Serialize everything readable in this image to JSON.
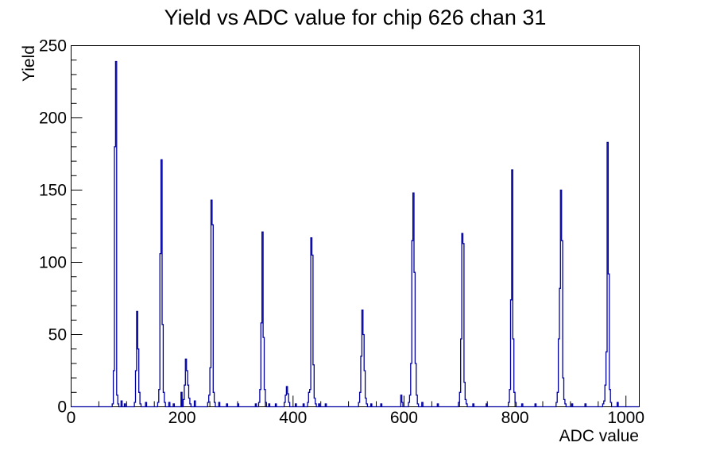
{
  "chart_data": {
    "type": "bar",
    "subtype": "histogram-step-line",
    "title": "Yield vs ADC value for chip 626 chan 31",
    "xlabel": "ADC value",
    "ylabel": "Yield",
    "xlim": [
      0,
      1024
    ],
    "ylim": [
      0,
      250
    ],
    "grid": false,
    "legend": null,
    "line_color": "#0000a0",
    "axis_color": "#000000",
    "x_ticks": {
      "major": [
        0,
        200,
        400,
        600,
        800,
        1000
      ],
      "labels": [
        "0",
        "200",
        "400",
        "600",
        "800",
        "1000"
      ],
      "minor_step": 50
    },
    "y_ticks": {
      "major": [
        0,
        50,
        100,
        150,
        200,
        250
      ],
      "labels": [
        "0",
        "50",
        "100",
        "150",
        "200",
        "250"
      ],
      "minor_step": 10
    },
    "bin_width": 2,
    "bins": [
      [
        74,
        2
      ],
      [
        76,
        25
      ],
      [
        78,
        180
      ],
      [
        80,
        239
      ],
      [
        82,
        8
      ],
      [
        84,
        2
      ],
      [
        90,
        4
      ],
      [
        96,
        2
      ],
      [
        114,
        3
      ],
      [
        116,
        25
      ],
      [
        118,
        66
      ],
      [
        120,
        40
      ],
      [
        122,
        10
      ],
      [
        124,
        2
      ],
      [
        134,
        3
      ],
      [
        156,
        3
      ],
      [
        158,
        12
      ],
      [
        160,
        106
      ],
      [
        162,
        171
      ],
      [
        164,
        57
      ],
      [
        166,
        10
      ],
      [
        168,
        3
      ],
      [
        176,
        3
      ],
      [
        184,
        2
      ],
      [
        198,
        10
      ],
      [
        202,
        5
      ],
      [
        204,
        15
      ],
      [
        206,
        33
      ],
      [
        208,
        25
      ],
      [
        210,
        15
      ],
      [
        212,
        6
      ],
      [
        214,
        2
      ],
      [
        222,
        4
      ],
      [
        246,
        3
      ],
      [
        248,
        8
      ],
      [
        250,
        27
      ],
      [
        252,
        143
      ],
      [
        254,
        126
      ],
      [
        256,
        10
      ],
      [
        258,
        3
      ],
      [
        266,
        3
      ],
      [
        280,
        2
      ],
      [
        300,
        2
      ],
      [
        332,
        2
      ],
      [
        338,
        3
      ],
      [
        340,
        12
      ],
      [
        342,
        58
      ],
      [
        344,
        121
      ],
      [
        346,
        48
      ],
      [
        348,
        12
      ],
      [
        350,
        3
      ],
      [
        356,
        2
      ],
      [
        368,
        2
      ],
      [
        384,
        3
      ],
      [
        386,
        8
      ],
      [
        388,
        14
      ],
      [
        390,
        9
      ],
      [
        392,
        3
      ],
      [
        404,
        2
      ],
      [
        418,
        2
      ],
      [
        426,
        3
      ],
      [
        428,
        10
      ],
      [
        430,
        12
      ],
      [
        432,
        117
      ],
      [
        434,
        105
      ],
      [
        436,
        29
      ],
      [
        438,
        6
      ],
      [
        440,
        2
      ],
      [
        446,
        2
      ],
      [
        458,
        2
      ],
      [
        518,
        3
      ],
      [
        520,
        10
      ],
      [
        522,
        35
      ],
      [
        524,
        67
      ],
      [
        526,
        50
      ],
      [
        528,
        25
      ],
      [
        530,
        6
      ],
      [
        532,
        2
      ],
      [
        540,
        2
      ],
      [
        558,
        2
      ],
      [
        594,
        8
      ],
      [
        596,
        3
      ],
      [
        608,
        3
      ],
      [
        610,
        8
      ],
      [
        612,
        30
      ],
      [
        614,
        115
      ],
      [
        616,
        148
      ],
      [
        618,
        93
      ],
      [
        620,
        30
      ],
      [
        622,
        8
      ],
      [
        624,
        2
      ],
      [
        632,
        3
      ],
      [
        660,
        2
      ],
      [
        698,
        3
      ],
      [
        700,
        10
      ],
      [
        702,
        47
      ],
      [
        704,
        120
      ],
      [
        706,
        113
      ],
      [
        708,
        17
      ],
      [
        710,
        5
      ],
      [
        712,
        2
      ],
      [
        724,
        2
      ],
      [
        748,
        2
      ],
      [
        788,
        3
      ],
      [
        790,
        12
      ],
      [
        792,
        74
      ],
      [
        794,
        164
      ],
      [
        796,
        47
      ],
      [
        798,
        10
      ],
      [
        800,
        3
      ],
      [
        812,
        2
      ],
      [
        836,
        2
      ],
      [
        874,
        3
      ],
      [
        876,
        10
      ],
      [
        878,
        47
      ],
      [
        880,
        82
      ],
      [
        882,
        150
      ],
      [
        884,
        115
      ],
      [
        886,
        20
      ],
      [
        888,
        5
      ],
      [
        890,
        2
      ],
      [
        902,
        2
      ],
      [
        926,
        2
      ],
      [
        958,
        2
      ],
      [
        960,
        4
      ],
      [
        962,
        15
      ],
      [
        964,
        38
      ],
      [
        966,
        183
      ],
      [
        968,
        92
      ],
      [
        970,
        12
      ],
      [
        972,
        3
      ],
      [
        984,
        3
      ]
    ]
  }
}
